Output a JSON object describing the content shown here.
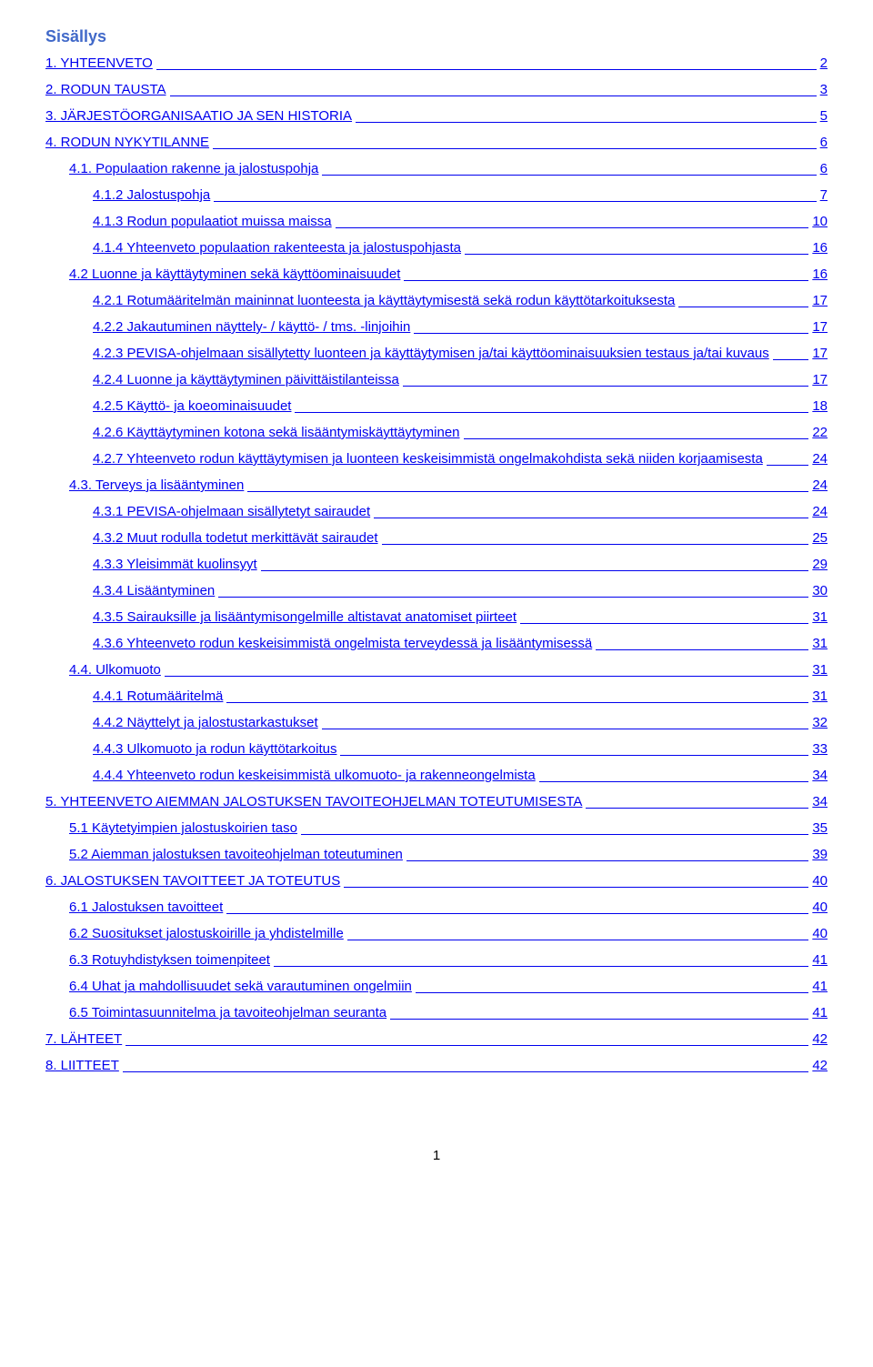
{
  "title": "Sisällys",
  "pageNumber": "1",
  "entries": [
    {
      "label": "1. YHTEENVETO",
      "page": "2",
      "indent": 0
    },
    {
      "label": "2. RODUN TAUSTA",
      "page": "3",
      "indent": 0
    },
    {
      "label": "3. JÄRJESTÖORGANISAATIO JA SEN HISTORIA",
      "page": "5",
      "indent": 0
    },
    {
      "label": "4. RODUN NYKYTILANNE",
      "page": "6",
      "indent": 0
    },
    {
      "label": "4.1. Populaation rakenne ja jalostuspohja",
      "page": "6",
      "indent": 1
    },
    {
      "label": "4.1.2 Jalostuspohja",
      "page": "7",
      "indent": 2
    },
    {
      "label": "4.1.3 Rodun populaatiot muissa maissa",
      "page": "10",
      "indent": 2
    },
    {
      "label": "4.1.4 Yhteenveto populaation rakenteesta ja jalostuspohjasta",
      "page": "16",
      "indent": 2
    },
    {
      "label": "4.2 Luonne ja käyttäytyminen sekä käyttöominaisuudet",
      "page": "16",
      "indent": 1
    },
    {
      "label": "4.2.1 Rotumääritelmän maininnat luonteesta ja käyttäytymisestä sekä rodun käyttötarkoituksesta",
      "page": "17",
      "indent": 2
    },
    {
      "label": "4.2.2 Jakautuminen näyttely- / käyttö- / tms. -linjoihin",
      "page": "17",
      "indent": 2
    },
    {
      "label": "4.2.3 PEVISA-ohjelmaan sisällytetty luonteen ja käyttäytymisen ja/tai käyttöominaisuuksien testaus ja/tai kuvaus",
      "page": "17",
      "indent": 2
    },
    {
      "label": "4.2.4 Luonne ja käyttäytyminen päivittäistilanteissa",
      "page": "17",
      "indent": 2
    },
    {
      "label": "4.2.5 Käyttö- ja koeominaisuudet",
      "page": "18",
      "indent": 2
    },
    {
      "label": "4.2.6 Käyttäytyminen kotona sekä lisääntymiskäyttäytyminen",
      "page": "22",
      "indent": 2
    },
    {
      "label": "4.2.7 Yhteenveto rodun käyttäytymisen ja luonteen keskeisimmistä ongelmakohdista sekä niiden korjaamisesta",
      "page": "24",
      "indent": 2
    },
    {
      "label": "4.3. Terveys ja lisääntyminen",
      "page": "24",
      "indent": 1
    },
    {
      "label": "4.3.1 PEVISA-ohjelmaan sisällytetyt sairaudet",
      "page": "24",
      "indent": 2
    },
    {
      "label": "4.3.2 Muut rodulla todetut merkittävät sairaudet",
      "page": "25",
      "indent": 2
    },
    {
      "label": "4.3.3 Yleisimmät kuolinsyyt",
      "page": "29",
      "indent": 2
    },
    {
      "label": "4.3.4 Lisääntyminen",
      "page": "30",
      "indent": 2
    },
    {
      "label": "4.3.5 Sairauksille ja lisääntymisongelmille altistavat anatomiset piirteet",
      "page": "31",
      "indent": 2
    },
    {
      "label": "4.3.6 Yhteenveto rodun keskeisimmistä ongelmista terveydessä ja lisääntymisessä",
      "page": "31",
      "indent": 2
    },
    {
      "label": "4.4. Ulkomuoto",
      "page": "31",
      "indent": 1
    },
    {
      "label": "4.4.1 Rotumääritelmä",
      "page": "31",
      "indent": 2
    },
    {
      "label": "4.4.2 Näyttelyt ja jalostustarkastukset",
      "page": "32",
      "indent": 2
    },
    {
      "label": "4.4.3 Ulkomuoto ja rodun käyttötarkoitus",
      "page": "33",
      "indent": 2
    },
    {
      "label": "4.4.4 Yhteenveto rodun keskeisimmistä ulkomuoto- ja rakenneongelmista",
      "page": "34",
      "indent": 2
    },
    {
      "label": "5. YHTEENVETO AIEMMAN JALOSTUKSEN TAVOITEOHJELMAN TOTEUTUMISESTA",
      "page": "34",
      "indent": 0
    },
    {
      "label": "5.1 Käytetyimpien jalostuskoirien taso",
      "page": "35",
      "indent": 1
    },
    {
      "label": "5.2 Aiemman jalostuksen tavoiteohjelman toteutuminen",
      "page": "39",
      "indent": 1
    },
    {
      "label": "6. JALOSTUKSEN TAVOITTEET JA TOTEUTUS",
      "page": "40",
      "indent": 0
    },
    {
      "label": "6.1 Jalostuksen tavoitteet",
      "page": "40",
      "indent": 1
    },
    {
      "label": "6.2 Suositukset jalostuskoirille ja yhdistelmille",
      "page": "40",
      "indent": 1
    },
    {
      "label": "6.3 Rotuyhdistyksen toimenpiteet",
      "page": "41",
      "indent": 1
    },
    {
      "label": "6.4 Uhat ja mahdollisuudet sekä varautuminen ongelmiin",
      "page": "41",
      "indent": 1
    },
    {
      "label": "6.5 Toimintasuunnitelma ja tavoiteohjelman seuranta",
      "page": "41",
      "indent": 1
    },
    {
      "label": "7. LÄHTEET",
      "page": "42",
      "indent": 0
    },
    {
      "label": "8. LIITTEET",
      "page": "42",
      "indent": 0
    }
  ]
}
